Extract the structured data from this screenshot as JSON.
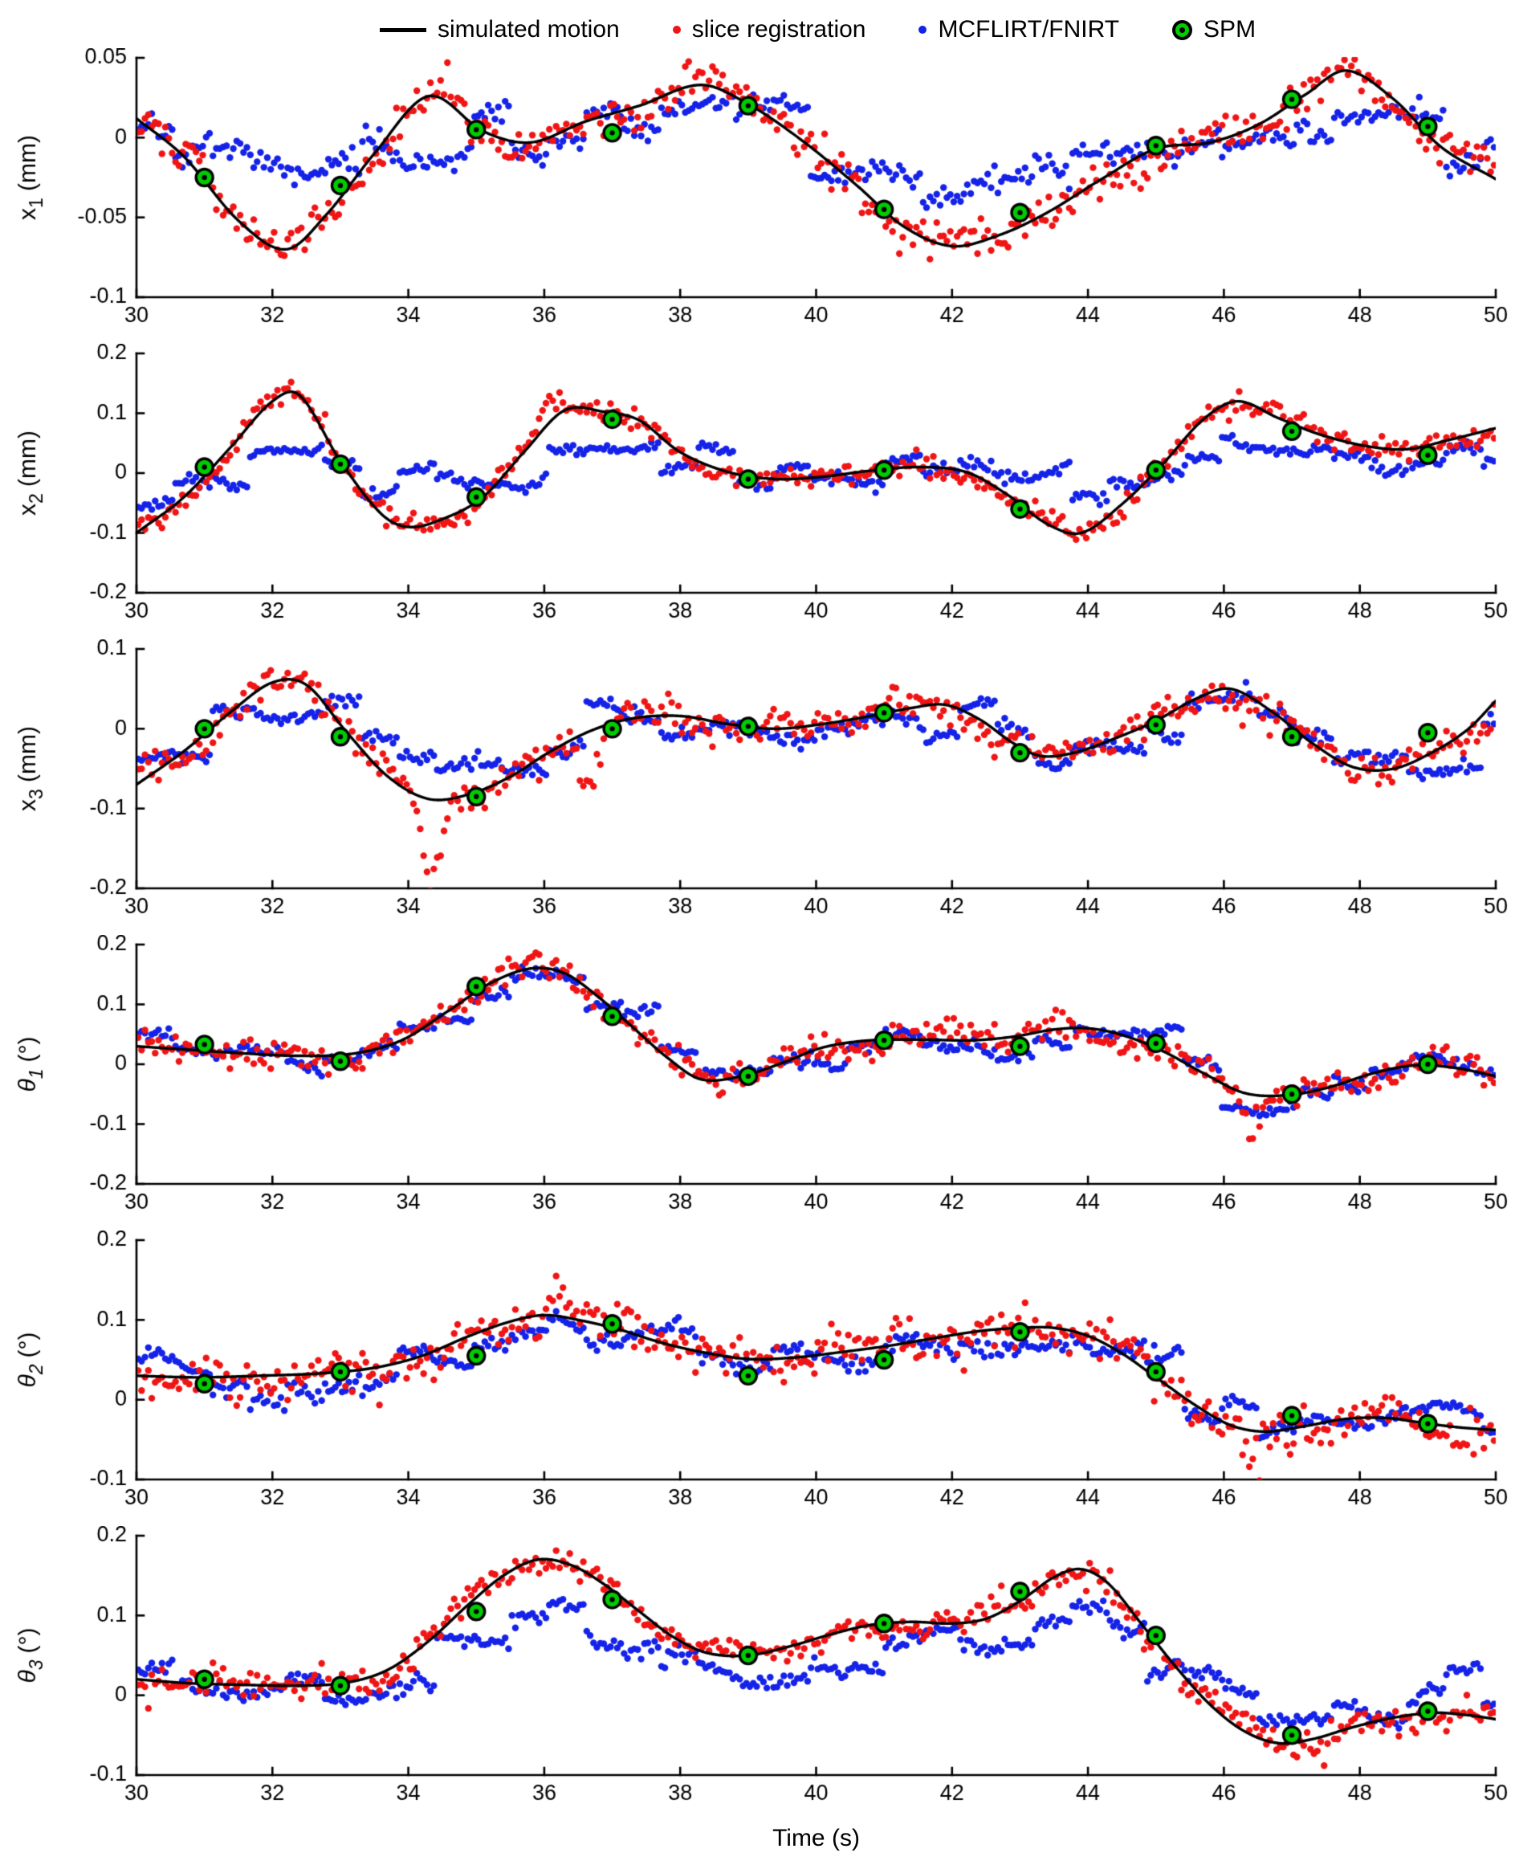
{
  "legend": {
    "items": [
      {
        "label": "simulated motion",
        "type": "line",
        "color": "#000000"
      },
      {
        "label": "slice registration",
        "type": "dot",
        "color": "#f01515"
      },
      {
        "label": "MCFLIRT/FNIRT",
        "type": "dot",
        "color": "#1522e8"
      },
      {
        "label": "SPM",
        "type": "circle-marker",
        "color": "#00cc00",
        "edge": "#000000"
      }
    ]
  },
  "xlabel": "Time (s)",
  "colors": {
    "curve": "#000000",
    "red": "#f01515",
    "blue": "#1522e8",
    "spm": "#00cc00",
    "spm_edge": "#000000"
  },
  "axes": {
    "xtick_values": [
      30,
      32,
      34,
      36,
      38,
      40,
      42,
      44,
      46,
      48,
      50
    ],
    "xtick_labels": [
      "30",
      "32",
      "34",
      "36",
      "38",
      "40",
      "42",
      "44",
      "46",
      "48",
      "50"
    ]
  },
  "chart_data": [
    {
      "type": "line+scatter",
      "ylabel": {
        "base": "x",
        "sub": "1",
        "unit": "(mm)",
        "italic": false
      },
      "xlim": [
        30,
        50
      ],
      "ylim": [
        -0.1,
        0.05
      ],
      "ytick_values": [
        0.05,
        0,
        -0.05,
        -0.1
      ],
      "ytick_labels": [
        "0.05",
        "0",
        "-0.05",
        "-0.1"
      ],
      "curve": {
        "x": [
          30,
          30.7,
          31.5,
          32.2,
          32.8,
          33.5,
          34.3,
          35.1,
          35.8,
          36.6,
          37.4,
          38.3,
          39.0,
          39.8,
          40.6,
          41.3,
          42.0,
          42.7,
          43.4,
          44.2,
          45.0,
          45.8,
          46.5,
          47.2,
          47.8,
          48.5,
          49.2,
          50
        ],
        "y": [
          0.012,
          -0.012,
          -0.052,
          -0.07,
          -0.048,
          -0.01,
          0.026,
          0.004,
          -0.003,
          0.01,
          0.02,
          0.033,
          0.021,
          -0.002,
          -0.03,
          -0.056,
          -0.068,
          -0.061,
          -0.047,
          -0.026,
          -0.007,
          -0.003,
          0.008,
          0.027,
          0.042,
          0.024,
          -0.006,
          -0.026
        ]
      },
      "spm": {
        "x": [
          31,
          33,
          35,
          37,
          39,
          41,
          43,
          45,
          47,
          49
        ],
        "y": [
          -0.025,
          -0.03,
          0.005,
          0.003,
          0.02,
          -0.045,
          -0.047,
          -0.005,
          0.024,
          0.007
        ]
      },
      "red": {
        "dt": 0.05,
        "sd": 0.006,
        "wander": [
          0.004,
          0.003
        ],
        "seed": 101,
        "bursts": []
      },
      "blue": {
        "dt": 0.05,
        "atten": 0.45,
        "lag": 0.3,
        "cluster": 0.55,
        "cluster_sd": 0.01,
        "sd": 0.0035,
        "wander": [
          0.006,
          0.004
        ],
        "seed": 102
      }
    },
    {
      "type": "line+scatter",
      "ylabel": {
        "base": "x",
        "sub": "2",
        "unit": "(mm)",
        "italic": false
      },
      "xlim": [
        30,
        50
      ],
      "ylim": [
        -0.2,
        0.2
      ],
      "ytick_values": [
        0.2,
        0.1,
        0,
        -0.1,
        -0.2
      ],
      "ytick_labels": [
        "0.2",
        "0.1",
        "0",
        "-0.1",
        "-0.2"
      ],
      "curve": {
        "x": [
          30,
          30.7,
          31.4,
          32.0,
          32.4,
          33.0,
          33.6,
          34.0,
          34.5,
          35.1,
          35.7,
          36.3,
          36.9,
          37.4,
          38.0,
          38.7,
          39.4,
          40.1,
          40.8,
          41.5,
          42.2,
          42.8,
          43.4,
          43.9,
          44.5,
          45.1,
          45.7,
          46.2,
          46.8,
          47.4,
          48.1,
          48.7,
          49.3,
          50
        ],
        "y": [
          -0.1,
          -0.04,
          0.045,
          0.12,
          0.13,
          0.02,
          -0.068,
          -0.09,
          -0.077,
          -0.04,
          0.035,
          0.105,
          0.102,
          0.088,
          0.035,
          0.002,
          -0.01,
          -0.006,
          0.004,
          0.01,
          0.002,
          -0.035,
          -0.085,
          -0.1,
          -0.052,
          0.015,
          0.09,
          0.12,
          0.092,
          0.065,
          0.045,
          0.04,
          0.055,
          0.075
        ]
      },
      "spm": {
        "x": [
          31,
          33,
          35,
          37,
          39,
          41,
          43,
          45,
          47,
          49
        ],
        "y": [
          0.01,
          0.015,
          -0.04,
          0.09,
          -0.01,
          0.005,
          -0.06,
          0.005,
          0.07,
          0.03
        ]
      },
      "red": {
        "dt": 0.05,
        "sd": 0.009,
        "wander": [
          0.006,
          0.004
        ],
        "seed": 201,
        "bursts": [
          {
            "t0": 35.8,
            "t1": 36.3,
            "dy": 0.03
          }
        ]
      },
      "blue": {
        "dt": 0.05,
        "atten": 0.35,
        "lag": 0.3,
        "cluster": 0.55,
        "cluster_sd": 0.014,
        "sd": 0.005,
        "wander": [
          0.01,
          0.006
        ],
        "seed": 202
      }
    },
    {
      "type": "line+scatter",
      "ylabel": {
        "base": "x",
        "sub": "3",
        "unit": "(mm)",
        "italic": false
      },
      "xlim": [
        30,
        50
      ],
      "ylim": [
        -0.2,
        0.1
      ],
      "ytick_values": [
        0.1,
        0,
        -0.1,
        -0.2
      ],
      "ytick_labels": [
        "0.1",
        "0",
        "-0.1",
        "-0.2"
      ],
      "curve": {
        "x": [
          30,
          30.7,
          31.4,
          32.0,
          32.5,
          33.1,
          33.7,
          34.3,
          34.9,
          35.5,
          36.1,
          36.7,
          37.3,
          38.0,
          38.7,
          39.4,
          40.1,
          40.8,
          41.4,
          41.9,
          42.4,
          42.9,
          43.3,
          43.8,
          44.4,
          45.0,
          45.6,
          46.1,
          46.7,
          47.3,
          47.9,
          48.5,
          49.1,
          49.6,
          50
        ],
        "y": [
          -0.07,
          -0.028,
          0.022,
          0.058,
          0.055,
          -0.005,
          -0.06,
          -0.088,
          -0.082,
          -0.06,
          -0.028,
          -0.002,
          0.013,
          0.016,
          0.006,
          0.0,
          0.006,
          0.016,
          0.026,
          0.03,
          0.012,
          -0.018,
          -0.034,
          -0.03,
          -0.012,
          0.01,
          0.038,
          0.05,
          0.022,
          -0.018,
          -0.048,
          -0.05,
          -0.028,
          0.0,
          0.035
        ]
      },
      "spm": {
        "x": [
          31,
          33,
          35,
          37,
          39,
          41,
          43,
          45,
          47,
          49
        ],
        "y": [
          0.0,
          -0.01,
          -0.085,
          0.0,
          0.003,
          0.02,
          -0.03,
          0.005,
          -0.01,
          -0.005
        ]
      },
      "red": {
        "dt": 0.05,
        "sd": 0.01,
        "wander": [
          0.008,
          0.005
        ],
        "seed": 301,
        "bursts": [
          {
            "t0": 34.1,
            "t1": 34.6,
            "dy": -0.09
          },
          {
            "t0": 36.4,
            "t1": 36.9,
            "dy": -0.07
          }
        ]
      },
      "blue": {
        "dt": 0.05,
        "atten": 0.65,
        "lag": 0.3,
        "cluster": 0.55,
        "cluster_sd": 0.013,
        "sd": 0.005,
        "wander": [
          0.008,
          0.005
        ],
        "seed": 302
      }
    },
    {
      "type": "line+scatter",
      "ylabel": {
        "base": "θ",
        "sub": "1",
        "unit": "(°)",
        "italic": true
      },
      "xlim": [
        30,
        50
      ],
      "ylim": [
        -0.2,
        0.2
      ],
      "ytick_values": [
        0.2,
        0.1,
        0,
        -0.1,
        -0.2
      ],
      "ytick_labels": [
        "0.2",
        "0.1",
        "0",
        "-0.1",
        "-0.2"
      ],
      "curve": {
        "x": [
          30,
          30.8,
          31.6,
          32.4,
          33.2,
          33.9,
          34.6,
          35.2,
          35.8,
          36.3,
          36.8,
          37.3,
          37.8,
          38.3,
          38.9,
          39.5,
          40.1,
          40.8,
          41.6,
          42.3,
          42.9,
          43.5,
          44.0,
          44.5,
          45.1,
          45.7,
          46.3,
          46.9,
          47.5,
          48.2,
          48.8,
          49.4,
          50
        ],
        "y": [
          0.03,
          0.024,
          0.018,
          0.014,
          0.018,
          0.04,
          0.09,
          0.135,
          0.16,
          0.152,
          0.112,
          0.062,
          0.012,
          -0.025,
          -0.02,
          0.002,
          0.028,
          0.04,
          0.041,
          0.04,
          0.046,
          0.058,
          0.06,
          0.049,
          0.022,
          -0.015,
          -0.048,
          -0.052,
          -0.04,
          -0.015,
          -0.002,
          -0.006,
          -0.02
        ]
      },
      "spm": {
        "x": [
          31,
          33,
          35,
          37,
          39,
          41,
          43,
          45,
          47,
          49
        ],
        "y": [
          0.033,
          0.005,
          0.13,
          0.08,
          -0.02,
          0.04,
          0.03,
          0.035,
          -0.05,
          0.0
        ]
      },
      "red": {
        "dt": 0.05,
        "sd": 0.012,
        "wander": [
          0.008,
          0.005
        ],
        "seed": 401,
        "bursts": [
          {
            "t0": 46.2,
            "t1": 46.6,
            "dy": -0.06
          }
        ]
      },
      "blue": {
        "dt": 0.05,
        "atten": 0.95,
        "lag": 0.25,
        "cluster": 0.55,
        "cluster_sd": 0.012,
        "sd": 0.005,
        "wander": [
          0.008,
          0.005
        ],
        "seed": 402
      }
    },
    {
      "type": "line+scatter",
      "ylabel": {
        "base": "θ",
        "sub": "2",
        "unit": "(°)",
        "italic": true
      },
      "xlim": [
        30,
        50
      ],
      "ylim": [
        -0.1,
        0.2
      ],
      "ytick_values": [
        0.2,
        0.1,
        0,
        -0.1
      ],
      "ytick_labels": [
        "0.2",
        "0.1",
        "0",
        "-0.1"
      ],
      "curve": {
        "x": [
          30,
          30.9,
          31.8,
          32.7,
          33.5,
          34.2,
          34.9,
          35.5,
          36.0,
          36.5,
          37.1,
          37.7,
          38.3,
          39.0,
          39.7,
          40.4,
          41.1,
          41.8,
          42.4,
          43.0,
          43.5,
          44.0,
          44.5,
          45.0,
          45.6,
          46.1,
          46.6,
          47.2,
          47.8,
          48.4,
          49.0,
          49.5,
          50
        ],
        "y": [
          0.03,
          0.028,
          0.03,
          0.033,
          0.04,
          0.055,
          0.08,
          0.098,
          0.106,
          0.1,
          0.088,
          0.072,
          0.06,
          0.051,
          0.053,
          0.06,
          0.068,
          0.078,
          0.086,
          0.09,
          0.09,
          0.08,
          0.058,
          0.028,
          -0.008,
          -0.032,
          -0.04,
          -0.033,
          -0.024,
          -0.023,
          -0.03,
          -0.035,
          -0.038
        ]
      },
      "spm": {
        "x": [
          31,
          33,
          35,
          37,
          39,
          41,
          43,
          45,
          47,
          49
        ],
        "y": [
          0.02,
          0.035,
          0.055,
          0.095,
          0.03,
          0.05,
          0.085,
          0.035,
          -0.02,
          -0.03
        ]
      },
      "red": {
        "dt": 0.05,
        "sd": 0.013,
        "wander": [
          0.008,
          0.005
        ],
        "seed": 501,
        "bursts": [
          {
            "t0": 36.0,
            "t1": 36.4,
            "dy": 0.05
          },
          {
            "t0": 46.2,
            "t1": 46.6,
            "dy": -0.04
          }
        ]
      },
      "blue": {
        "dt": 0.05,
        "atten": 0.85,
        "lag": 0.25,
        "cluster": 0.55,
        "cluster_sd": 0.013,
        "sd": 0.005,
        "wander": [
          0.01,
          0.006
        ],
        "seed": 502
      }
    },
    {
      "type": "line+scatter",
      "ylabel": {
        "base": "θ",
        "sub": "3",
        "unit": "(°)",
        "italic": true
      },
      "xlim": [
        30,
        50
      ],
      "ylim": [
        -0.1,
        0.2
      ],
      "ytick_values": [
        0.2,
        0.1,
        0,
        -0.1
      ],
      "ytick_labels": [
        "0.2",
        "0.1",
        "0",
        "-0.1"
      ],
      "curve": {
        "x": [
          30,
          30.8,
          31.6,
          32.4,
          33.1,
          33.7,
          34.3,
          34.9,
          35.4,
          35.9,
          36.4,
          36.9,
          37.4,
          37.9,
          38.4,
          39.0,
          39.6,
          40.2,
          40.8,
          41.4,
          42.0,
          42.5,
          43.0,
          43.5,
          43.9,
          44.3,
          44.8,
          45.3,
          45.8,
          46.3,
          46.8,
          47.3,
          47.9,
          48.5,
          49.1,
          49.6,
          50
        ],
        "y": [
          0.02,
          0.015,
          0.013,
          0.012,
          0.016,
          0.032,
          0.068,
          0.115,
          0.15,
          0.17,
          0.163,
          0.138,
          0.105,
          0.073,
          0.053,
          0.05,
          0.061,
          0.076,
          0.088,
          0.092,
          0.09,
          0.096,
          0.118,
          0.148,
          0.158,
          0.14,
          0.088,
          0.035,
          -0.012,
          -0.045,
          -0.06,
          -0.055,
          -0.04,
          -0.028,
          -0.022,
          -0.025,
          -0.03
        ]
      },
      "spm": {
        "x": [
          31,
          33,
          35,
          37,
          39,
          41,
          43,
          45,
          47,
          49
        ],
        "y": [
          0.02,
          0.012,
          0.105,
          0.12,
          0.05,
          0.09,
          0.13,
          0.075,
          -0.05,
          -0.02
        ]
      },
      "red": {
        "dt": 0.05,
        "sd": 0.009,
        "wander": [
          0.006,
          0.004
        ],
        "seed": 601,
        "bursts": []
      },
      "blue": {
        "dt": 0.05,
        "atten": 0.6,
        "lag": 0.3,
        "cluster": 0.55,
        "cluster_sd": 0.012,
        "sd": 0.005,
        "wander": [
          0.008,
          0.005
        ],
        "seed": 602
      }
    }
  ]
}
